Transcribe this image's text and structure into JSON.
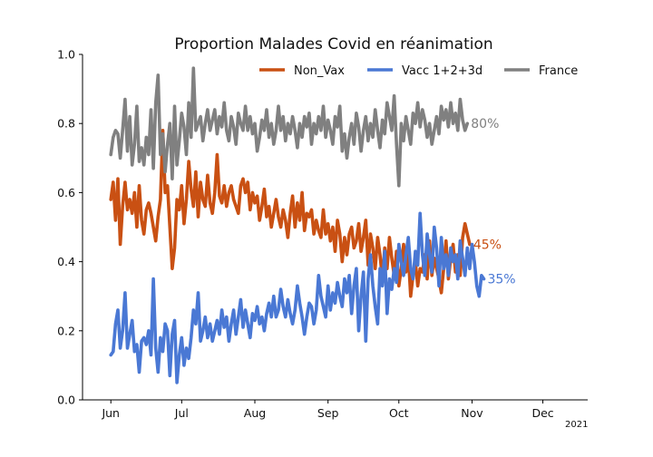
{
  "chart_data": {
    "type": "line",
    "title": "Proportion Malades Covid en réanimation",
    "xlabel": "",
    "ylabel": "",
    "ylim": [
      0,
      1
    ],
    "yticks": [
      "0.0",
      "0.2",
      "0.4",
      "0.6",
      "0.8",
      "1.0"
    ],
    "xlim": [
      "2021-05-20",
      "2021-12-20"
    ],
    "xtick_labels": [
      "Jun",
      "Jul",
      "Aug",
      "Sep",
      "Oct",
      "Nov",
      "Dec"
    ],
    "xtick_dates": [
      "2021-06-01",
      "2021-07-01",
      "2021-08-01",
      "2021-09-01",
      "2021-10-01",
      "2021-11-01",
      "2021-12-01"
    ],
    "year_label": "2021",
    "legend_position": "top-right",
    "series": [
      {
        "name": "Non_Vax",
        "color": "#c95013",
        "end_label": "45%",
        "start": "2021-06-01",
        "values": [
          0.58,
          0.63,
          0.52,
          0.64,
          0.45,
          0.56,
          0.63,
          0.55,
          0.58,
          0.54,
          0.6,
          0.5,
          0.62,
          0.52,
          0.48,
          0.55,
          0.57,
          0.54,
          0.5,
          0.46,
          0.53,
          0.58,
          0.78,
          0.6,
          0.62,
          0.5,
          0.38,
          0.44,
          0.58,
          0.55,
          0.62,
          0.51,
          0.58,
          0.69,
          0.61,
          0.56,
          0.66,
          0.53,
          0.63,
          0.58,
          0.56,
          0.65,
          0.57,
          0.54,
          0.6,
          0.71,
          0.59,
          0.57,
          0.62,
          0.56,
          0.6,
          0.62,
          0.58,
          0.56,
          0.54,
          0.62,
          0.64,
          0.6,
          0.63,
          0.55,
          0.6,
          0.57,
          0.59,
          0.52,
          0.56,
          0.61,
          0.53,
          0.56,
          0.5,
          0.54,
          0.58,
          0.53,
          0.5,
          0.55,
          0.52,
          0.47,
          0.54,
          0.59,
          0.5,
          0.57,
          0.52,
          0.6,
          0.49,
          0.54,
          0.53,
          0.55,
          0.48,
          0.52,
          0.49,
          0.47,
          0.55,
          0.48,
          0.51,
          0.46,
          0.5,
          0.43,
          0.52,
          0.48,
          0.4,
          0.47,
          0.42,
          0.48,
          0.5,
          0.44,
          0.46,
          0.51,
          0.43,
          0.47,
          0.52,
          0.39,
          0.48,
          0.44,
          0.38,
          0.47,
          0.42,
          0.35,
          0.44,
          0.38,
          0.47,
          0.41,
          0.36,
          0.43,
          0.33,
          0.38,
          0.45,
          0.37,
          0.42,
          0.3,
          0.36,
          0.4,
          0.33,
          0.38,
          0.37,
          0.42,
          0.35,
          0.46,
          0.36,
          0.41,
          0.38,
          0.35,
          0.31,
          0.38,
          0.46,
          0.35,
          0.41,
          0.45,
          0.37,
          0.42,
          0.36,
          0.47,
          0.51,
          0.48,
          0.45
        ]
      },
      {
        "name": "Vacc 1+2+3d",
        "color": "#4a78d4",
        "end_label": "35%",
        "start": "2021-06-01",
        "values": [
          0.13,
          0.14,
          0.22,
          0.26,
          0.15,
          0.2,
          0.31,
          0.15,
          0.19,
          0.23,
          0.14,
          0.16,
          0.08,
          0.17,
          0.18,
          0.16,
          0.2,
          0.13,
          0.35,
          0.15,
          0.08,
          0.18,
          0.14,
          0.22,
          0.2,
          0.07,
          0.19,
          0.23,
          0.05,
          0.13,
          0.18,
          0.1,
          0.15,
          0.12,
          0.18,
          0.26,
          0.22,
          0.31,
          0.17,
          0.2,
          0.24,
          0.18,
          0.22,
          0.17,
          0.2,
          0.23,
          0.19,
          0.26,
          0.21,
          0.24,
          0.17,
          0.22,
          0.26,
          0.19,
          0.24,
          0.29,
          0.21,
          0.26,
          0.22,
          0.18,
          0.25,
          0.23,
          0.27,
          0.22,
          0.24,
          0.2,
          0.25,
          0.28,
          0.24,
          0.3,
          0.24,
          0.26,
          0.32,
          0.27,
          0.24,
          0.29,
          0.25,
          0.22,
          0.26,
          0.33,
          0.28,
          0.24,
          0.19,
          0.24,
          0.28,
          0.27,
          0.22,
          0.26,
          0.36,
          0.3,
          0.27,
          0.24,
          0.33,
          0.26,
          0.31,
          0.28,
          0.34,
          0.3,
          0.27,
          0.35,
          0.31,
          0.36,
          0.25,
          0.33,
          0.38,
          0.2,
          0.3,
          0.37,
          0.17,
          0.35,
          0.42,
          0.33,
          0.27,
          0.22,
          0.38,
          0.33,
          0.43,
          0.25,
          0.35,
          0.32,
          0.38,
          0.34,
          0.45,
          0.4,
          0.36,
          0.42,
          0.47,
          0.38,
          0.35,
          0.43,
          0.39,
          0.54,
          0.42,
          0.36,
          0.48,
          0.42,
          0.37,
          0.5,
          0.44,
          0.33,
          0.47,
          0.38,
          0.42,
          0.36,
          0.44,
          0.4,
          0.42,
          0.35,
          0.46,
          0.41,
          0.36,
          0.44,
          0.38,
          0.45,
          0.4,
          0.33,
          0.3,
          0.36,
          0.35
        ]
      },
      {
        "name": "France",
        "color": "#808080",
        "end_label": "80%",
        "start": "2021-06-01",
        "values": [
          0.71,
          0.76,
          0.78,
          0.77,
          0.7,
          0.78,
          0.87,
          0.72,
          0.82,
          0.68,
          0.74,
          0.85,
          0.69,
          0.73,
          0.68,
          0.76,
          0.71,
          0.84,
          0.67,
          0.86,
          0.94,
          0.71,
          0.77,
          0.66,
          0.74,
          0.8,
          0.64,
          0.85,
          0.68,
          0.75,
          0.83,
          0.79,
          0.71,
          0.86,
          0.76,
          0.96,
          0.78,
          0.8,
          0.82,
          0.75,
          0.8,
          0.84,
          0.78,
          0.81,
          0.84,
          0.77,
          0.82,
          0.79,
          0.86,
          0.78,
          0.75,
          0.82,
          0.79,
          0.74,
          0.83,
          0.8,
          0.78,
          0.85,
          0.78,
          0.82,
          0.77,
          0.8,
          0.72,
          0.76,
          0.81,
          0.78,
          0.84,
          0.76,
          0.8,
          0.74,
          0.78,
          0.85,
          0.78,
          0.82,
          0.75,
          0.8,
          0.77,
          0.82,
          0.78,
          0.73,
          0.8,
          0.76,
          0.82,
          0.79,
          0.83,
          0.74,
          0.8,
          0.77,
          0.82,
          0.78,
          0.85,
          0.76,
          0.81,
          0.78,
          0.74,
          0.82,
          0.79,
          0.85,
          0.72,
          0.77,
          0.7,
          0.76,
          0.8,
          0.74,
          0.83,
          0.79,
          0.72,
          0.78,
          0.82,
          0.75,
          0.8,
          0.76,
          0.84,
          0.78,
          0.73,
          0.81,
          0.77,
          0.86,
          0.82,
          0.78,
          0.88,
          0.74,
          0.62,
          0.8,
          0.75,
          0.82,
          0.78,
          0.74,
          0.83,
          0.8,
          0.86,
          0.79,
          0.84,
          0.81,
          0.76,
          0.8,
          0.74,
          0.78,
          0.82,
          0.77,
          0.85,
          0.81,
          0.84,
          0.79,
          0.86,
          0.8,
          0.83,
          0.78,
          0.87,
          0.81,
          0.78,
          0.8
        ]
      }
    ]
  }
}
